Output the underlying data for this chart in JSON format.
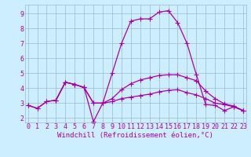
{
  "background_color": "#cceeff",
  "plot_bg_color": "#cceeff",
  "line_color": "#aa00aa",
  "grid_color": "#99bbcc",
  "xlabel": "Windchill (Refroidissement éolien,°C)",
  "xlabel_color": "#aa00aa",
  "xticks": [
    0,
    1,
    2,
    3,
    4,
    5,
    6,
    7,
    8,
    9,
    10,
    11,
    12,
    13,
    14,
    15,
    16,
    17,
    18,
    19,
    20,
    21,
    22,
    23
  ],
  "yticks": [
    2,
    3,
    4,
    5,
    6,
    7,
    8,
    9
  ],
  "xlim": [
    -0.3,
    23.3
  ],
  "ylim": [
    1.7,
    9.6
  ],
  "series": [
    {
      "x": [
        0,
        1,
        2,
        3,
        4,
        5,
        6,
        7,
        8,
        9,
        10,
        11,
        12,
        13,
        14,
        15,
        16,
        17,
        18,
        19,
        20,
        21,
        22,
        23
      ],
      "y": [
        2.85,
        2.65,
        3.1,
        3.2,
        4.4,
        4.25,
        4.05,
        3.0,
        3.0,
        3.1,
        3.3,
        3.4,
        3.5,
        3.6,
        3.75,
        3.85,
        3.9,
        3.7,
        3.55,
        3.3,
        3.0,
        2.9,
        2.75,
        2.5
      ]
    },
    {
      "x": [
        0,
        1,
        2,
        3,
        4,
        5,
        6,
        7,
        8,
        9,
        10,
        11,
        12,
        13,
        14,
        15,
        16,
        17,
        18,
        19,
        20,
        21,
        22,
        23
      ],
      "y": [
        2.85,
        2.65,
        3.1,
        3.2,
        4.4,
        4.25,
        4.05,
        3.0,
        3.0,
        3.3,
        3.9,
        4.3,
        4.55,
        4.7,
        4.85,
        4.9,
        4.9,
        4.7,
        4.5,
        3.8,
        3.3,
        2.95,
        2.8,
        2.5
      ]
    },
    {
      "x": [
        3,
        4,
        5,
        6,
        7,
        8,
        9,
        10,
        11,
        12,
        13,
        14,
        15,
        16,
        17,
        18,
        19,
        20,
        21,
        22,
        23
      ],
      "y": [
        3.2,
        4.4,
        4.25,
        4.05,
        1.75,
        3.0,
        5.0,
        7.0,
        8.5,
        8.65,
        8.65,
        9.1,
        9.2,
        8.4,
        7.0,
        4.9,
        2.9,
        2.85,
        2.5,
        2.75,
        2.5
      ]
    }
  ],
  "marker": "+",
  "markersize": 4,
  "linewidth": 0.9,
  "fontsize_tick": 6,
  "fontsize_label": 6.5
}
